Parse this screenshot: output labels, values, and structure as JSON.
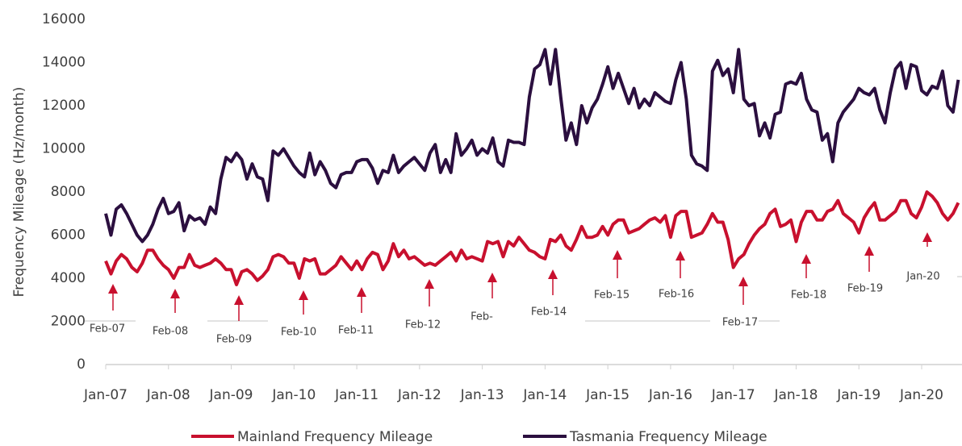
{
  "chart_data": {
    "type": "line",
    "y_label": "Frequency Mileage (Hz/month)",
    "categories": [
      "Jan-07",
      null,
      null,
      null,
      null,
      null,
      null,
      null,
      null,
      null,
      null,
      null,
      "Jan-08",
      null,
      null,
      null,
      null,
      null,
      null,
      null,
      null,
      null,
      null,
      null,
      "Jan-09",
      null,
      null,
      null,
      null,
      null,
      null,
      null,
      null,
      null,
      null,
      null,
      "Jan-10",
      null,
      null,
      null,
      null,
      null,
      null,
      null,
      null,
      null,
      null,
      null,
      "Jan-11",
      null,
      null,
      null,
      null,
      null,
      null,
      null,
      null,
      null,
      null,
      null,
      "Jan-12",
      null,
      null,
      null,
      null,
      null,
      null,
      null,
      null,
      null,
      null,
      null,
      "Jan-13",
      null,
      null,
      null,
      null,
      null,
      null,
      null,
      null,
      null,
      null,
      null,
      "Jan-14",
      null,
      null,
      null,
      null,
      null,
      null,
      null,
      null,
      null,
      null,
      null,
      "Jan-15",
      null,
      null,
      null,
      null,
      null,
      null,
      null,
      null,
      null,
      null,
      null,
      "Jan-16",
      null,
      null,
      null,
      null,
      null,
      null,
      null,
      null,
      null,
      null,
      null,
      "Jan-17",
      null,
      null,
      null,
      null,
      null,
      null,
      null,
      null,
      null,
      null,
      null,
      "Jan-18",
      null,
      null,
      null,
      null,
      null,
      null,
      null,
      null,
      null,
      null,
      null,
      "Jan-19",
      null,
      null,
      null,
      null,
      null,
      null,
      null,
      null,
      null,
      null,
      null,
      "Jan-20",
      null,
      null,
      null,
      null,
      null,
      null,
      null
    ],
    "series": [
      {
        "name": "Mainland Frequency Mileage",
        "color": "#c8102e",
        "values": [
          4800,
          4200,
          4800,
          5100,
          4900,
          4500,
          4300,
          4700,
          5300,
          5300,
          4900,
          4600,
          4400,
          4000,
          4500,
          4500,
          5100,
          4600,
          4500,
          4600,
          4700,
          4900,
          4700,
          4400,
          4400,
          3700,
          4300,
          4400,
          4200,
          3900,
          4100,
          4400,
          5000,
          5100,
          5000,
          4700,
          4700,
          4000,
          4900,
          4800,
          4900,
          4200,
          4200,
          4400,
          4600,
          5000,
          4700,
          4400,
          4800,
          4400,
          4900,
          5200,
          5100,
          4400,
          4800,
          5600,
          5000,
          5300,
          4900,
          5000,
          4800,
          4600,
          4700,
          4600,
          4800,
          5000,
          5200,
          4800,
          5300,
          4900,
          5000,
          4900,
          4800,
          5700,
          5600,
          5700,
          5000,
          5700,
          5500,
          5900,
          5600,
          5300,
          5200,
          5000,
          4900,
          5800,
          5700,
          6000,
          5500,
          5300,
          5800,
          6400,
          5900,
          5900,
          6000,
          6400,
          6000,
          6500,
          6700,
          6700,
          6100,
          6200,
          6300,
          6500,
          6700,
          6800,
          6600,
          6900,
          5900,
          6900,
          7100,
          7100,
          5900,
          6000,
          6100,
          6500,
          7000,
          6600,
          6600,
          5800,
          4500,
          4900,
          5100,
          5600,
          6000,
          6300,
          6500,
          7000,
          7200,
          6400,
          6500,
          6700,
          5700,
          6600,
          7100,
          7100,
          6700,
          6700,
          7100,
          7200,
          7600,
          7000,
          6800,
          6600,
          6100,
          6800,
          7200,
          7500,
          6700,
          6700,
          6900,
          7100,
          7600,
          7600,
          7000,
          6800,
          7300,
          8000,
          7800,
          7500,
          7000,
          6700,
          7000,
          7500
        ]
      },
      {
        "name": "Tasmania Frequency Mileage",
        "color": "#2b0f3f",
        "values": [
          7000,
          6000,
          7200,
          7400,
          7000,
          6500,
          6000,
          5700,
          6000,
          6500,
          7200,
          7700,
          7000,
          7100,
          7500,
          6200,
          6900,
          6700,
          6800,
          6500,
          7300,
          7000,
          8600,
          9600,
          9400,
          9800,
          9500,
          8600,
          9300,
          8700,
          8600,
          7600,
          9900,
          9700,
          10000,
          9600,
          9200,
          8900,
          8700,
          9800,
          8800,
          9400,
          9000,
          8400,
          8200,
          8800,
          8900,
          8900,
          9400,
          9500,
          9500,
          9100,
          8400,
          9000,
          8900,
          9700,
          8900,
          9200,
          9400,
          9600,
          9300,
          9000,
          9800,
          10200,
          8900,
          9500,
          8900,
          10700,
          9700,
          10000,
          10400,
          9700,
          10000,
          9800,
          10500,
          9400,
          9200,
          10400,
          10300,
          10300,
          10200,
          12400,
          13700,
          13900,
          14600,
          13000,
          14600,
          12400,
          10400,
          11200,
          10200,
          12000,
          11200,
          11900,
          12300,
          13000,
          13800,
          12800,
          13500,
          12800,
          12100,
          12800,
          11900,
          12300,
          12000,
          12600,
          12400,
          12200,
          12100,
          13200,
          14000,
          12300,
          9700,
          9300,
          9200,
          9000,
          13600,
          14100,
          13400,
          13700,
          12600,
          14600,
          12300,
          12000,
          12100,
          10600,
          11200,
          10500,
          11600,
          11700,
          13000,
          13100,
          13000,
          13500,
          12300,
          11800,
          11700,
          10400,
          10700,
          9400,
          11200,
          11700,
          12000,
          12300,
          12800,
          12600,
          12500,
          12800,
          11800,
          11200,
          12600,
          13700,
          14000,
          12800,
          13900,
          13800,
          12700,
          12500,
          12900,
          12800,
          13600,
          12000,
          11700,
          13200
        ]
      }
    ],
    "ylim": [
      0,
      16000
    ],
    "yticks": [
      0,
      2000,
      4000,
      6000,
      8000,
      10000,
      12000,
      14000,
      16000
    ],
    "grid": false,
    "annotations": [
      "Feb-07",
      "Feb-08",
      "Feb-09",
      "Feb-10",
      "Feb-11",
      "Feb-12",
      "Feb-",
      "Feb-14",
      "Feb-15",
      "Feb-16",
      "Feb-17",
      "Feb-18",
      "Feb-19",
      "Jan-20"
    ]
  }
}
